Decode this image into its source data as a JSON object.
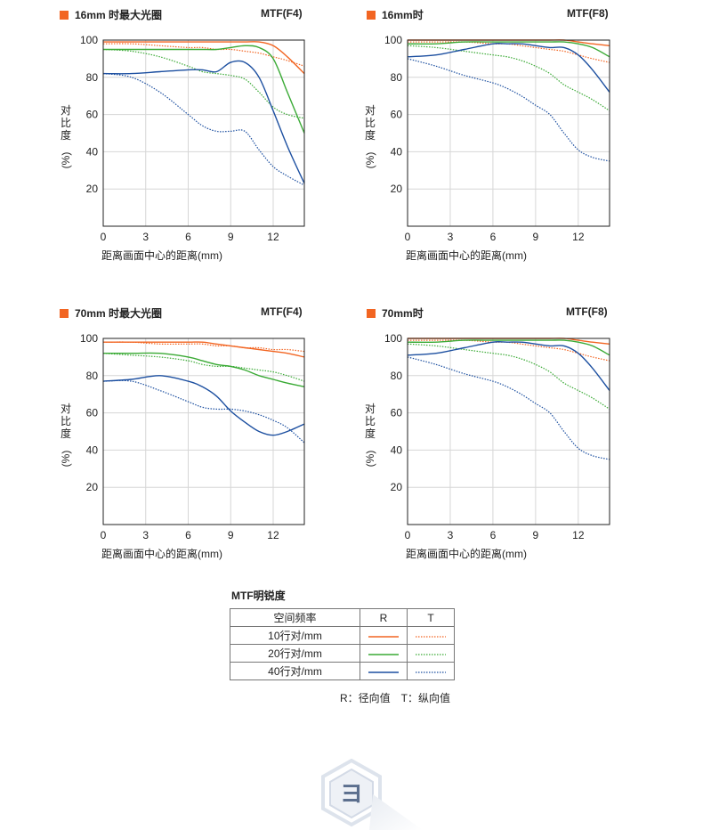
{
  "panels": [
    {
      "id": "p1",
      "title": "16mm 时最大光圈",
      "condition": "MTF(F4)"
    },
    {
      "id": "p2",
      "title": "16mm时",
      "condition": "MTF(F8)"
    },
    {
      "id": "p3",
      "title": "70mm 时最大光圈",
      "condition": "MTF(F4)"
    },
    {
      "id": "p4",
      "title": "70mm时",
      "condition": "MTF(F8)"
    }
  ],
  "axis": {
    "xlabel": "距离画面中心的距离(mm)",
    "ylabel_chars": [
      "对",
      "比",
      "度"
    ],
    "ylabel_unit": "(%)",
    "xticks": [
      "0",
      "3",
      "6",
      "9",
      "12"
    ],
    "yticks": [
      "20",
      "40",
      "60",
      "80",
      "100"
    ]
  },
  "chart_data": [
    {
      "type": "line",
      "title": "16mm 时最大光圈 MTF(F4)",
      "xlabel": "距离画面中心的距离(mm)",
      "ylabel": "对比度(%)",
      "xlim": [
        0,
        14.2
      ],
      "ylim": [
        0,
        100
      ],
      "grid": true,
      "x": [
        0,
        2,
        4,
        6,
        7,
        8,
        9,
        10,
        11,
        12,
        13,
        14.2
      ],
      "series": [
        {
          "name": "10 R",
          "color": "#f26522",
          "dash": false,
          "values": [
            99,
            99,
            99,
            99,
            99,
            99,
            99,
            99,
            99,
            97,
            91,
            82
          ]
        },
        {
          "name": "10 T",
          "color": "#f26522",
          "dash": true,
          "values": [
            98,
            98,
            97,
            96,
            96,
            95,
            95,
            94,
            93,
            91,
            89,
            86
          ]
        },
        {
          "name": "20 R",
          "color": "#3aaa35",
          "dash": false,
          "values": [
            95,
            95,
            95,
            95,
            95,
            95,
            96,
            97,
            96,
            90,
            72,
            50
          ]
        },
        {
          "name": "20 T",
          "color": "#3aaa35",
          "dash": true,
          "values": [
            95,
            94,
            91,
            86,
            83,
            82,
            81,
            79,
            72,
            64,
            60,
            58
          ]
        },
        {
          "name": "40 R",
          "color": "#1c4fa0",
          "dash": false,
          "values": [
            82,
            82,
            83,
            84,
            84,
            83,
            88,
            88,
            80,
            62,
            43,
            23
          ]
        },
        {
          "name": "40 T",
          "color": "#1c4fa0",
          "dash": true,
          "values": [
            82,
            80,
            72,
            60,
            54,
            51,
            51,
            51,
            41,
            32,
            27,
            22
          ]
        }
      ]
    },
    {
      "type": "line",
      "title": "16mm时 MTF(F8)",
      "xlabel": "距离画面中心的距离(mm)",
      "ylabel": "对比度(%)",
      "xlim": [
        0,
        14.2
      ],
      "ylim": [
        0,
        100
      ],
      "grid": true,
      "x": [
        0,
        2,
        4,
        6,
        7,
        8,
        9,
        10,
        11,
        12,
        13,
        14.2
      ],
      "series": [
        {
          "name": "10 R",
          "color": "#f26522",
          "dash": false,
          "values": [
            100,
            100,
            100,
            100,
            100,
            100,
            100,
            100,
            100,
            99,
            98,
            97
          ]
        },
        {
          "name": "10 T",
          "color": "#f26522",
          "dash": true,
          "values": [
            99,
            99,
            99,
            98,
            98,
            97,
            96,
            95,
            94,
            92,
            90,
            88
          ]
        },
        {
          "name": "20 R",
          "color": "#3aaa35",
          "dash": false,
          "values": [
            98,
            98,
            99,
            99,
            99,
            99,
            99,
            99,
            99,
            98,
            96,
            91
          ]
        },
        {
          "name": "20 T",
          "color": "#3aaa35",
          "dash": true,
          "values": [
            97,
            96,
            94,
            92,
            91,
            89,
            86,
            82,
            76,
            72,
            68,
            62
          ]
        },
        {
          "name": "40 R",
          "color": "#1c4fa0",
          "dash": false,
          "values": [
            91,
            92,
            95,
            98,
            98,
            98,
            97,
            96,
            96,
            92,
            84,
            72
          ]
        },
        {
          "name": "40 T",
          "color": "#1c4fa0",
          "dash": true,
          "values": [
            90,
            86,
            81,
            77,
            74,
            70,
            65,
            60,
            50,
            41,
            37,
            35
          ]
        }
      ]
    },
    {
      "type": "line",
      "title": "70mm 时最大光圈 MTF(F4)",
      "xlabel": "距离画面中心的距离(mm)",
      "ylabel": "对比度(%)",
      "xlim": [
        0,
        14.2
      ],
      "ylim": [
        0,
        100
      ],
      "grid": true,
      "x": [
        0,
        2,
        4,
        6,
        7,
        8,
        9,
        10,
        11,
        12,
        13,
        14.2
      ],
      "series": [
        {
          "name": "10 R",
          "color": "#f26522",
          "dash": false,
          "values": [
            98,
            98,
            98,
            98,
            98,
            97,
            96,
            95,
            94,
            93,
            92,
            90
          ]
        },
        {
          "name": "10 T",
          "color": "#f26522",
          "dash": true,
          "values": [
            98,
            98,
            97,
            97,
            97,
            96,
            96,
            95,
            95,
            94,
            94,
            93
          ]
        },
        {
          "name": "20 R",
          "color": "#3aaa35",
          "dash": false,
          "values": [
            92,
            92,
            92,
            90,
            88,
            86,
            85,
            83,
            80,
            78,
            76,
            74
          ]
        },
        {
          "name": "20 T",
          "color": "#3aaa35",
          "dash": true,
          "values": [
            92,
            91,
            90,
            88,
            86,
            85,
            85,
            84,
            83,
            82,
            80,
            77
          ]
        },
        {
          "name": "40 R",
          "color": "#1c4fa0",
          "dash": false,
          "values": [
            77,
            78,
            80,
            77,
            74,
            69,
            61,
            55,
            50,
            48,
            50,
            54
          ]
        },
        {
          "name": "40 T",
          "color": "#1c4fa0",
          "dash": true,
          "values": [
            77,
            77,
            72,
            66,
            63,
            62,
            62,
            61,
            59,
            56,
            52,
            44
          ]
        }
      ]
    },
    {
      "type": "line",
      "title": "70mm时 MTF(F8)",
      "xlabel": "距离画面中心的距离(mm)",
      "ylabel": "对比度(%)",
      "xlim": [
        0,
        14.2
      ],
      "ylim": [
        0,
        100
      ],
      "grid": true,
      "x": [
        0,
        2,
        4,
        6,
        7,
        8,
        9,
        10,
        11,
        12,
        13,
        14.2
      ],
      "series": [
        {
          "name": "10 R",
          "color": "#f26522",
          "dash": false,
          "values": [
            100,
            100,
            100,
            100,
            100,
            100,
            100,
            100,
            100,
            99,
            98,
            97
          ]
        },
        {
          "name": "10 T",
          "color": "#f26522",
          "dash": true,
          "values": [
            99,
            99,
            99,
            98,
            98,
            97,
            96,
            95,
            94,
            92,
            90,
            88
          ]
        },
        {
          "name": "20 R",
          "color": "#3aaa35",
          "dash": false,
          "values": [
            98,
            98,
            99,
            99,
            99,
            99,
            99,
            99,
            99,
            98,
            96,
            91
          ]
        },
        {
          "name": "20 T",
          "color": "#3aaa35",
          "dash": true,
          "values": [
            97,
            96,
            94,
            92,
            91,
            89,
            86,
            82,
            76,
            72,
            68,
            62
          ]
        },
        {
          "name": "40 R",
          "color": "#1c4fa0",
          "dash": false,
          "values": [
            91,
            92,
            95,
            98,
            98,
            98,
            97,
            96,
            96,
            92,
            84,
            72
          ]
        },
        {
          "name": "40 T",
          "color": "#1c4fa0",
          "dash": true,
          "values": [
            90,
            86,
            81,
            77,
            74,
            70,
            65,
            60,
            50,
            41,
            37,
            35
          ]
        }
      ]
    }
  ],
  "legend": {
    "title": "MTF明锐度",
    "headers": [
      "空间频率",
      "R",
      "T"
    ],
    "rows": [
      {
        "label": "10行对/mm",
        "color": "#f26522"
      },
      {
        "label": "20行对/mm",
        "color": "#3aaa35"
      },
      {
        "label": "40行对/mm",
        "color": "#1c4fa0"
      }
    ],
    "note": "R：径向值　T：纵向值"
  },
  "logo_glyph": "ヨ"
}
